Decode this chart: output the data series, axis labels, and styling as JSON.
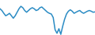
{
  "x": [
    0,
    1,
    2,
    3,
    4,
    5,
    6,
    7,
    8,
    9,
    10,
    11,
    12,
    13,
    14,
    15,
    16,
    17,
    18,
    19,
    20,
    21,
    22,
    23,
    24,
    25,
    26,
    27,
    28,
    29,
    30,
    31,
    32,
    33,
    34,
    35,
    36,
    37,
    38,
    39,
    40,
    41,
    42,
    43,
    44,
    45,
    46,
    47,
    48,
    49,
    50
  ],
  "y": [
    7.5,
    7.0,
    6.2,
    5.5,
    5.8,
    6.2,
    5.5,
    4.8,
    5.5,
    6.5,
    7.5,
    8.2,
    7.8,
    7.0,
    6.5,
    7.0,
    7.5,
    7.8,
    7.5,
    7.0,
    7.2,
    7.8,
    8.0,
    7.5,
    7.0,
    6.5,
    6.2,
    6.0,
    5.0,
    1.5,
    0.5,
    1.8,
    0.2,
    2.5,
    4.5,
    6.0,
    6.8,
    7.2,
    6.8,
    6.2,
    6.5,
    6.8,
    7.0,
    6.5,
    6.2,
    6.5,
    6.8,
    7.0,
    6.8,
    6.5,
    6.6
  ],
  "line_color": "#2b8cc4",
  "background_color": "#ffffff",
  "linewidth": 1.1
}
